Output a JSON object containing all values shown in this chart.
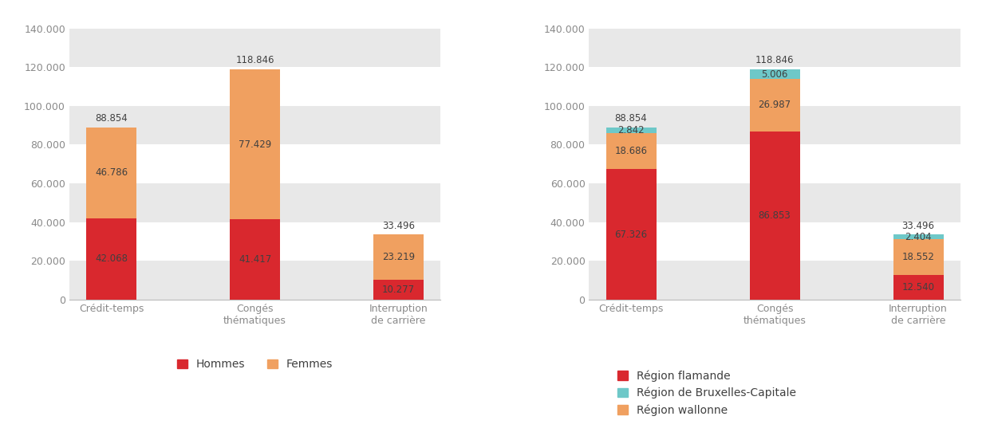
{
  "categories": [
    "Crédit-temps",
    "Congés\nthématiques",
    "Interruption\nde carrière"
  ],
  "left_chart": {
    "hommes": [
      42068,
      41417,
      10277
    ],
    "femmes": [
      46786,
      77429,
      23219
    ],
    "totals": [
      88854,
      118846,
      33496
    ],
    "color_hommes": "#d9282e",
    "color_femmes": "#f0a060",
    "legend": [
      "Hommes",
      "Femmes"
    ]
  },
  "right_chart": {
    "flamande": [
      67326,
      86853,
      12540
    ],
    "wallonne": [
      18686,
      26987,
      18552
    ],
    "bruxelles": [
      2842,
      5006,
      2404
    ],
    "totals": [
      88854,
      118846,
      33496
    ],
    "color_flamande": "#d9282e",
    "color_wallonne": "#f0a060",
    "color_bruxelles": "#6ec8c8",
    "legend": [
      "Région flamande",
      "Région de Bruxelles-Capitale",
      "Région wallonne"
    ]
  },
  "ylim": [
    0,
    148000
  ],
  "yticks": [
    0,
    20000,
    40000,
    60000,
    80000,
    100000,
    120000,
    140000
  ],
  "ytick_labels": [
    "0",
    "20.000",
    "40.000",
    "60.000",
    "80.000",
    "100.000",
    "120.000",
    "140.000"
  ],
  "bg_color": "#ffffff",
  "band_color": "#e8e8e8",
  "bar_width": 0.35,
  "label_fontsize": 8.5,
  "tick_fontsize": 9,
  "legend_fontsize": 10,
  "axis_label_color": "#8a8a8a",
  "text_color": "#404040"
}
